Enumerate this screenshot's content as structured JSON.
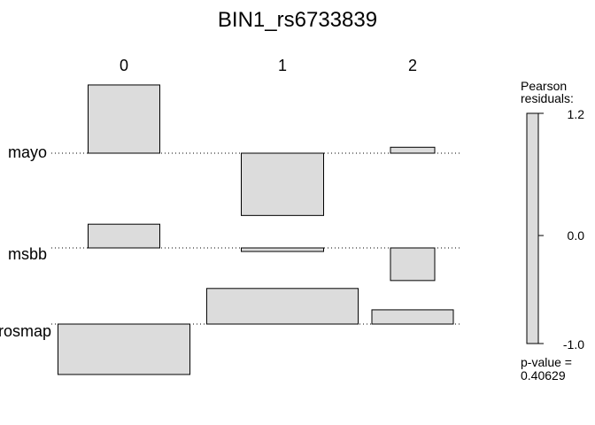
{
  "chart_data": {
    "type": "assoc",
    "title": "BIN1_rs6733839",
    "columns": [
      "0",
      "1",
      "2"
    ],
    "rows": [
      "mayo",
      "msbb",
      "rosmap"
    ],
    "cells": [
      {
        "row": "mayo",
        "col": "0",
        "residual": 1.15
      },
      {
        "row": "mayo",
        "col": "1",
        "residual": -1.05
      },
      {
        "row": "mayo",
        "col": "2",
        "residual": 0.1
      },
      {
        "row": "msbb",
        "col": "0",
        "residual": 0.4
      },
      {
        "row": "msbb",
        "col": "1",
        "residual": -0.06
      },
      {
        "row": "msbb",
        "col": "2",
        "residual": -0.55
      },
      {
        "row": "rosmap",
        "col": "0",
        "residual": -0.85
      },
      {
        "row": "rosmap",
        "col": "1",
        "residual": 0.6
      },
      {
        "row": "rosmap",
        "col": "2",
        "residual": 0.24
      }
    ],
    "legend": {
      "title_line1": "Pearson",
      "title_line2": "residuals:",
      "max_label": "1.2",
      "mid_label": "0.0",
      "min_label": "-1.0",
      "max": 1.2,
      "min": -1.0,
      "pvalue_label": "p-value =",
      "pvalue": "0.40629"
    },
    "fill_color": "#dcdcdc",
    "stroke_color": "#000000"
  }
}
